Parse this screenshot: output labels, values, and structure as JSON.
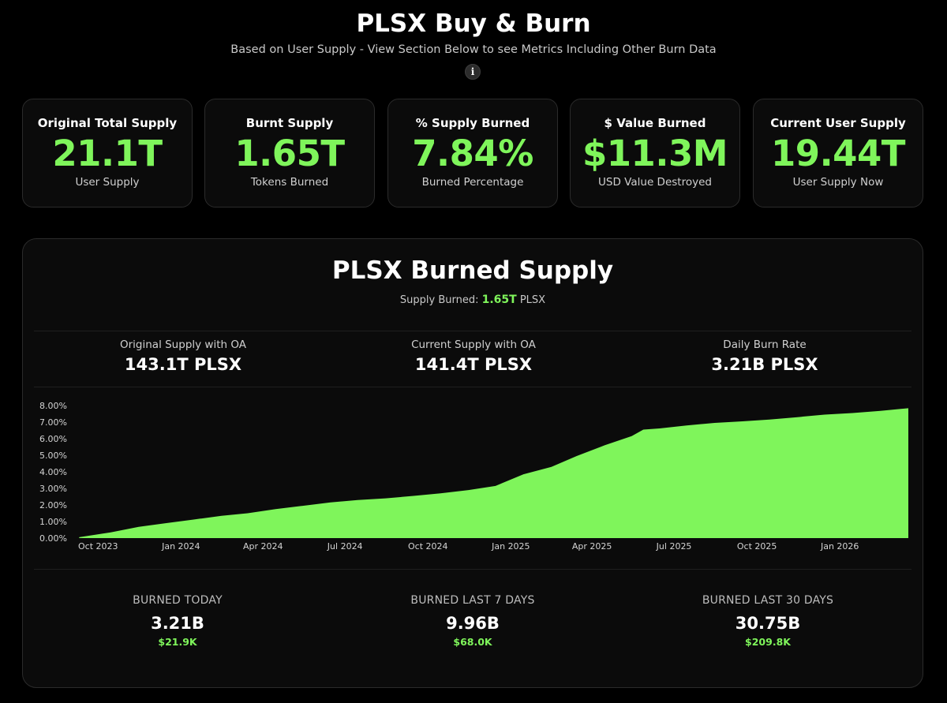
{
  "header": {
    "title": "PLSX Buy & Burn",
    "subtitle": "Based on User Supply - View Section Below to see Metrics Including Other Burn Data",
    "info_icon": "i"
  },
  "cards": [
    {
      "label": "Original Total Supply",
      "value": "21.1T",
      "caption": "User Supply"
    },
    {
      "label": "Burnt Supply",
      "value": "1.65T",
      "caption": "Tokens Burned"
    },
    {
      "label": "% Supply Burned",
      "value": "7.84%",
      "caption": "Burned Percentage"
    },
    {
      "label": "$ Value Burned",
      "value": "$11.3M",
      "caption": "USD Value Destroyed"
    },
    {
      "label": "Current User Supply",
      "value": "19.44T",
      "caption": "User Supply Now"
    }
  ],
  "panel": {
    "title": "PLSX Burned Supply",
    "supply_label": "Supply Burned:",
    "supply_value": "1.65T",
    "supply_unit": "PLSX",
    "metrics": [
      {
        "label": "Original Supply with OA",
        "value": "143.1T PLSX"
      },
      {
        "label": "Current Supply with OA",
        "value": "141.4T PLSX"
      },
      {
        "label": "Daily Burn Rate",
        "value": "3.21B PLSX"
      }
    ],
    "burn_stats": [
      {
        "label": "BURNED TODAY",
        "value": "3.21B",
        "usd": "$21.9K"
      },
      {
        "label": "BURNED LAST 7 DAYS",
        "value": "9.96B",
        "usd": "$68.0K"
      },
      {
        "label": "BURNED LAST 30 DAYS",
        "value": "30.75B",
        "usd": "$209.8K"
      }
    ]
  },
  "colors": {
    "accent": "#7ff55b",
    "background": "#000000",
    "card": "#0b0b0b",
    "border": "#2b2b2b"
  },
  "chart_data": {
    "type": "area",
    "title": "",
    "xlabel": "",
    "ylabel": "",
    "y_tick_labels": [
      "0.00%",
      "1.00%",
      "2.00%",
      "3.00%",
      "4.00%",
      "5.00%",
      "6.00%",
      "7.00%",
      "8.00%"
    ],
    "x_tick_labels": [
      "Oct 2023",
      "Jan 2024",
      "Apr 2024",
      "Jul 2024",
      "Oct 2024",
      "Jan 2025",
      "Apr 2025",
      "Jul 2025",
      "Oct 2025",
      "Jan 2026"
    ],
    "ylim": [
      0,
      8
    ],
    "grid": false,
    "series": [
      {
        "x": [
          "2023-09-10",
          "2023-10-15",
          "2023-11-15",
          "2023-12-15",
          "2024-01-15",
          "2024-02-15",
          "2024-03-15",
          "2024-04-15",
          "2024-05-15",
          "2024-06-15",
          "2024-07-15",
          "2024-08-15",
          "2024-09-15",
          "2024-10-15",
          "2024-11-15",
          "2024-12-15",
          "2025-01-15",
          "2025-02-15",
          "2025-03-15",
          "2025-04-15",
          "2025-05-15",
          "2025-05-28",
          "2025-06-15",
          "2025-07-15",
          "2025-08-15",
          "2025-09-15",
          "2025-10-15",
          "2025-11-15",
          "2025-12-15",
          "2026-01-15",
          "2026-02-15",
          "2026-03-18"
        ],
        "y": [
          0.05,
          0.35,
          0.68,
          0.9,
          1.12,
          1.35,
          1.5,
          1.75,
          1.95,
          2.15,
          2.3,
          2.4,
          2.55,
          2.7,
          2.9,
          3.15,
          3.85,
          4.3,
          4.95,
          5.6,
          6.15,
          6.55,
          6.62,
          6.8,
          6.95,
          7.05,
          7.15,
          7.3,
          7.45,
          7.55,
          7.68,
          7.84
        ]
      }
    ]
  }
}
